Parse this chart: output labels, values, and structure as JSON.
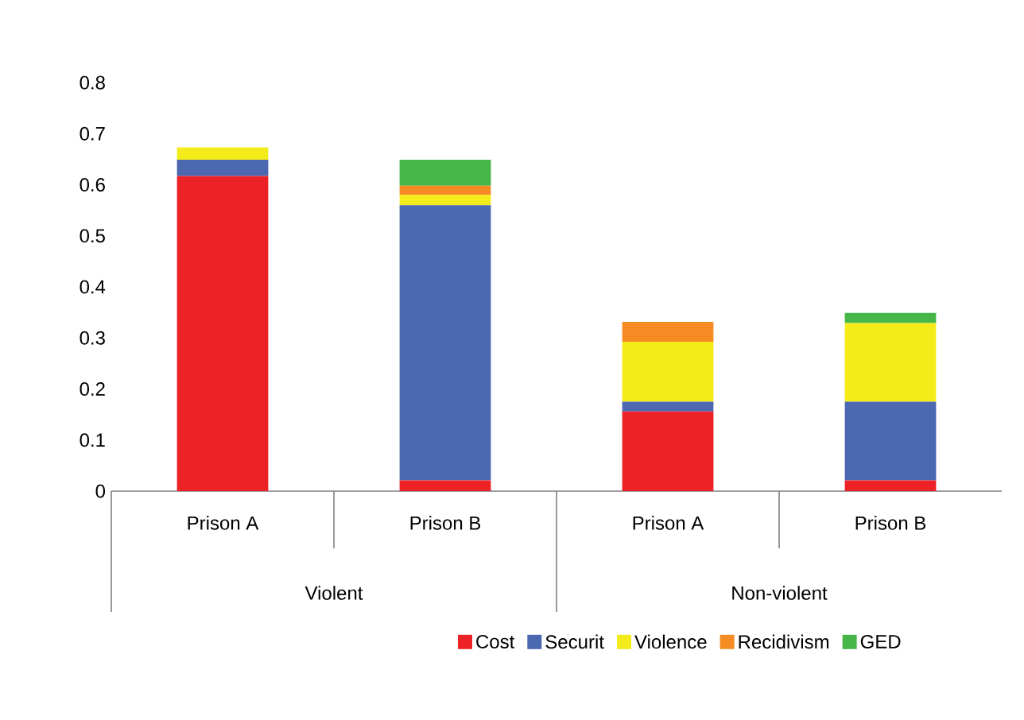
{
  "chart_data": {
    "type": "bar",
    "stacked": true,
    "categories": [
      "Prison A",
      "Prison B",
      "Prison A",
      "Prison B"
    ],
    "annotations": [
      "Violent",
      "Non-violent"
    ],
    "series": [
      {
        "name": "Cost",
        "color": "#ec2227",
        "values": [
          0.617,
          0.021,
          0.156,
          0.021
        ]
      },
      {
        "name": "Securit",
        "color": "#4b68b0",
        "values": [
          0.032,
          0.539,
          0.019,
          0.154
        ]
      },
      {
        "name": "Violence",
        "color": "#f4eb1a",
        "values": [
          0.024,
          0.02,
          0.1175,
          0.154
        ]
      },
      {
        "name": "Recidivism",
        "color": "#f58b22",
        "values": [
          0,
          0.018,
          0.039,
          0
        ]
      },
      {
        "name": "GED",
        "color": "#46b649",
        "values": [
          0,
          0.051,
          0,
          0.02
        ]
      }
    ],
    "ylim": [
      0,
      0.8
    ],
    "yticks": [
      0,
      0.1,
      0.2,
      0.3,
      0.4,
      0.5,
      0.6,
      0.7,
      0.8
    ],
    "legend": "bottom"
  }
}
